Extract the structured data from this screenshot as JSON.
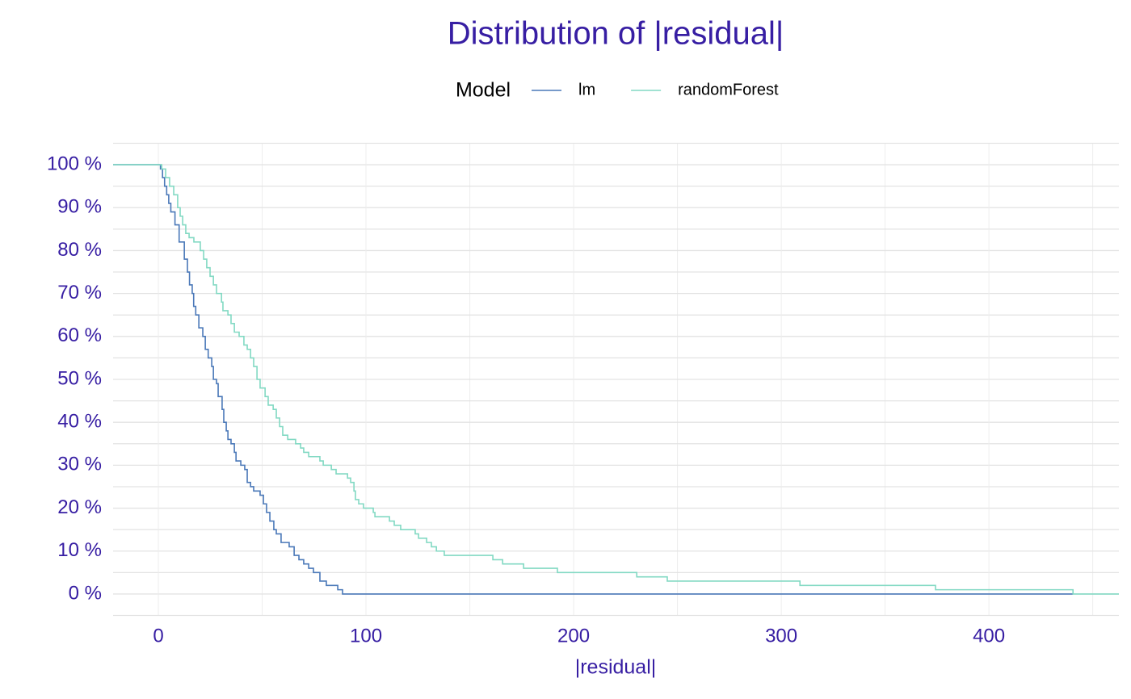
{
  "chart_data": {
    "type": "step",
    "title": "Distribution of |residual|",
    "legend_title": "Model",
    "x_label": "|residual|",
    "xlim": [
      -21.8,
      462.6
    ],
    "ylim": [
      -4.9,
      104.9
    ],
    "xticks": [
      0,
      100,
      200,
      300,
      400
    ],
    "yticks": [
      {
        "value": 0,
        "label": "0 %"
      },
      {
        "value": 10,
        "label": "10 %"
      },
      {
        "value": 20,
        "label": "20 %"
      },
      {
        "value": 30,
        "label": "30 %"
      },
      {
        "value": 40,
        "label": "40 %"
      },
      {
        "value": 50,
        "label": "50 %"
      },
      {
        "value": 60,
        "label": "60 %"
      },
      {
        "value": 70,
        "label": "70 %"
      },
      {
        "value": 80,
        "label": "80 %"
      },
      {
        "value": 90,
        "label": "90 %"
      },
      {
        "value": 100,
        "label": "100 %"
      }
    ],
    "grid": true,
    "minor_grid": true,
    "legend_position": "top",
    "series": [
      {
        "name": "lm",
        "color": "#4a78b8",
        "x": [
          -21.8,
          0,
          1,
          2,
          3,
          4,
          5,
          6,
          8,
          10,
          12.5,
          14,
          15,
          16.3,
          17,
          18,
          19.5,
          21.4,
          22.6,
          24,
          25.7,
          26.5,
          28,
          28.8,
          30.7,
          31.5,
          32.7,
          33.5,
          35,
          36.6,
          37.4,
          39.7,
          41.6,
          42.8,
          44.4,
          45.9,
          49,
          50.6,
          52.1,
          53.7,
          55.6,
          56.8,
          59.1,
          63,
          65.4,
          67.7,
          70,
          72.4,
          74.7,
          77.8,
          80.9,
          86.4,
          88.7,
          440.5
        ],
        "values": [
          100,
          100,
          99,
          97,
          95,
          93,
          91,
          89,
          86,
          82,
          78,
          75,
          72,
          70,
          67,
          65,
          62,
          60,
          57,
          55,
          53,
          50,
          49,
          46,
          43,
          40,
          38,
          36,
          35,
          33,
          31,
          30,
          29,
          26,
          25,
          24,
          23,
          21,
          19,
          17,
          15,
          14,
          12,
          11,
          9,
          8,
          7,
          6,
          5,
          3,
          2,
          1,
          0,
          0
        ]
      },
      {
        "name": "randomForest",
        "color": "#82d9c3",
        "x": [
          -21.8,
          0,
          1.6,
          3.5,
          5.4,
          7.4,
          9.3,
          10.5,
          11.7,
          13.2,
          14.8,
          17.1,
          20.2,
          21.8,
          23.3,
          24.9,
          26.5,
          28,
          30.4,
          31.1,
          33.5,
          35,
          36.6,
          38.9,
          41.2,
          42.8,
          44.4,
          45.9,
          47.5,
          49,
          51.4,
          52.9,
          55.3,
          56.8,
          58.4,
          59.9,
          62.3,
          66.1,
          68.5,
          70,
          72.4,
          77.8,
          79.4,
          83.3,
          85.6,
          91.1,
          92.6,
          94.2,
          94.9,
          96.5,
          98.8,
          103.5,
          104.3,
          111.3,
          113.6,
          116.7,
          123.7,
          125.3,
          129.2,
          131.5,
          133.9,
          137.7,
          161.1,
          165.8,
          175.9,
          192.2,
          230.4,
          245.1,
          309,
          374.3,
          440.5,
          462.6
        ],
        "values": [
          100,
          100,
          99,
          97,
          95,
          93,
          90,
          88,
          86,
          84,
          83,
          82,
          80,
          78,
          76,
          74,
          72,
          70,
          68,
          66,
          65,
          63,
          61,
          60,
          58,
          57,
          55,
          53,
          50,
          48,
          46,
          44,
          43,
          41,
          39,
          37,
          36,
          35,
          34,
          33,
          32,
          31,
          30,
          29,
          28,
          27,
          26,
          24,
          22,
          21,
          20,
          19,
          18,
          17,
          16,
          15,
          14,
          13,
          12,
          11,
          10,
          9,
          8,
          7,
          6,
          5,
          4,
          3,
          2,
          1,
          0,
          0
        ]
      }
    ]
  }
}
